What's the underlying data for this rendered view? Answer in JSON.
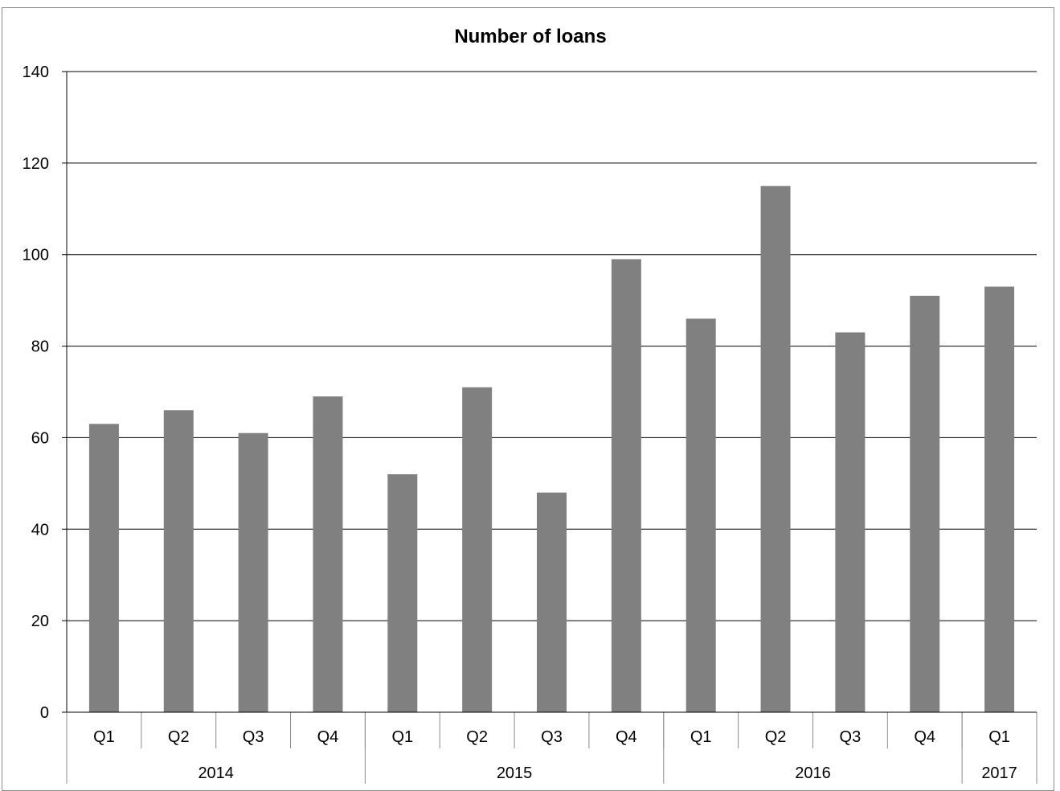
{
  "chart_data": {
    "type": "bar",
    "title": "Number of loans",
    "categories": [
      "Q1",
      "Q2",
      "Q3",
      "Q4",
      "Q1",
      "Q2",
      "Q3",
      "Q4",
      "Q1",
      "Q2",
      "Q3",
      "Q4",
      "Q1"
    ],
    "groups": [
      {
        "label": "2014",
        "count": 4
      },
      {
        "label": "2015",
        "count": 4
      },
      {
        "label": "2016",
        "count": 4
      },
      {
        "label": "2017",
        "count": 1
      }
    ],
    "values": [
      63,
      66,
      61,
      69,
      52,
      71,
      48,
      99,
      86,
      115,
      83,
      91,
      93
    ],
    "ylim": [
      0,
      140
    ],
    "yticks": [
      0,
      20,
      40,
      60,
      80,
      100,
      120,
      140
    ],
    "grid": true,
    "legend": "none",
    "bar_color": "#808080"
  }
}
